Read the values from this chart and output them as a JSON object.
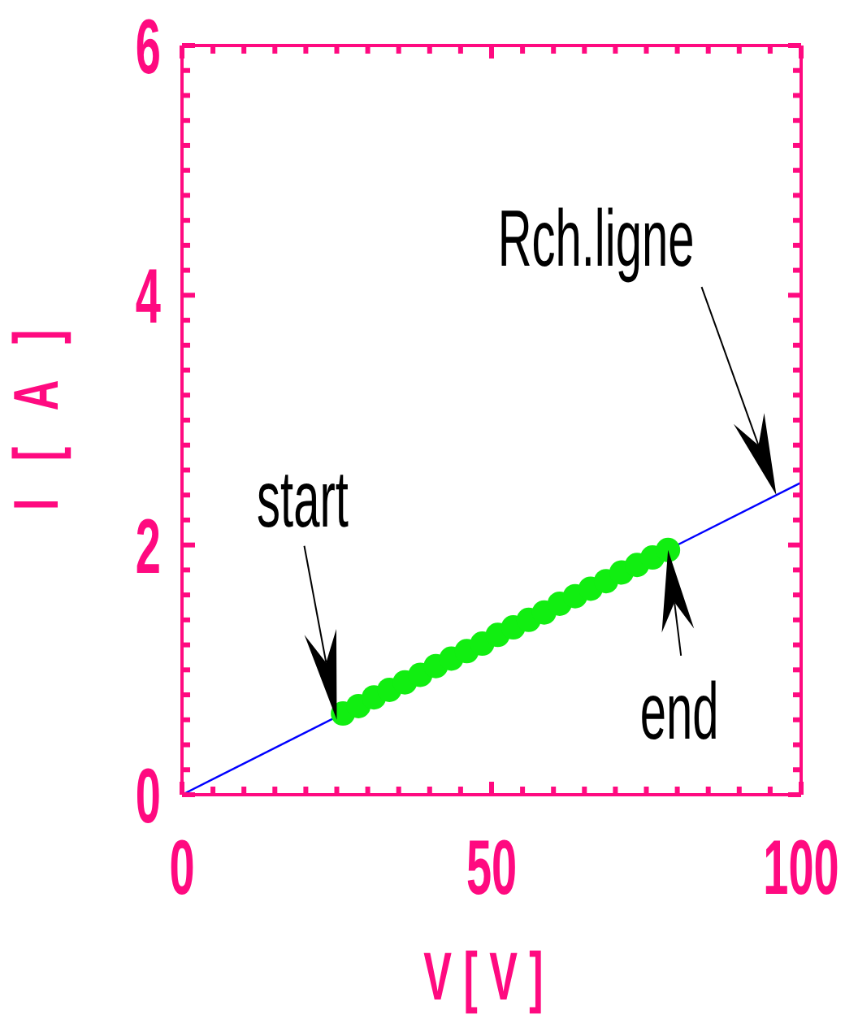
{
  "chart_data": {
    "type": "line",
    "xlabel": "V [ V ]",
    "ylabel": "I [ A ]",
    "xlim": [
      0,
      100
    ],
    "xticks": [
      0,
      {
        "value": 5,
        "label": null
      },
      {
        "value": 10,
        "label": null
      },
      {
        "value": 15,
        "label": null
      },
      {
        "value": 20,
        "label": null
      },
      {
        "value": 25,
        "label": null
      },
      {
        "value": 30,
        "label": null
      },
      {
        "value": 35,
        "label": null
      },
      {
        "value": 40,
        "label": null
      },
      {
        "value": 45,
        "label": null
      },
      50,
      {
        "value": 55,
        "label": null
      },
      {
        "value": 60,
        "label": null
      },
      {
        "value": 65,
        "label": null
      },
      {
        "value": 70,
        "label": null
      },
      {
        "value": 75,
        "label": null
      },
      {
        "value": 80,
        "label": null
      },
      {
        "value": 85,
        "label": null
      },
      {
        "value": 90,
        "label": null
      },
      {
        "value": 95,
        "label": null
      },
      100
    ],
    "ylim": [
      0,
      6
    ],
    "yticks": [
      0,
      {
        "value": 0.2,
        "label": null
      },
      {
        "value": 0.4,
        "label": null
      },
      {
        "value": 0.6,
        "label": null
      },
      {
        "value": 0.8,
        "label": null
      },
      {
        "value": 1,
        "label": null
      },
      {
        "value": 1.2,
        "label": null
      },
      {
        "value": 1.4,
        "label": null
      },
      {
        "value": 1.6,
        "label": null
      },
      {
        "value": 1.8,
        "label": null
      },
      2,
      {
        "value": 2.2,
        "label": null
      },
      {
        "value": 2.4,
        "label": null
      },
      {
        "value": 2.6,
        "label": null
      },
      {
        "value": 2.8,
        "label": null
      },
      {
        "value": 3,
        "label": null
      },
      {
        "value": 3.2,
        "label": null
      },
      {
        "value": 3.4,
        "label": null
      },
      {
        "value": 3.6,
        "label": null
      },
      {
        "value": 3.8,
        "label": null
      },
      4,
      {
        "value": 4.2,
        "label": null
      },
      {
        "value": 4.4,
        "label": null
      },
      {
        "value": 4.6,
        "label": null
      },
      {
        "value": 4.8,
        "label": null
      },
      {
        "value": 5,
        "label": null
      },
      {
        "value": 5.2,
        "label": null
      },
      {
        "value": 5.4,
        "label": null
      },
      {
        "value": 5.6,
        "label": null
      },
      {
        "value": 5.8,
        "label": null
      },
      6
    ],
    "series": [
      {
        "color": "#0000ff",
        "marker": "none",
        "x": [
          0,
          100
        ],
        "values": [
          0,
          2.5
        ]
      },
      {
        "type": "scatter",
        "color": "#11ee11",
        "marker": "circle",
        "x": [
          26,
          28.5,
          31,
          33.5,
          36,
          38.5,
          41,
          43.5,
          46,
          48.5,
          51,
          53.5,
          56,
          58.5,
          61,
          63.5,
          66,
          68.5,
          71,
          73.5,
          76,
          78.5
        ],
        "values": [
          0.65,
          0.71,
          0.78,
          0.84,
          0.9,
          0.96,
          1.03,
          1.09,
          1.15,
          1.21,
          1.28,
          1.34,
          1.4,
          1.46,
          1.53,
          1.59,
          1.65,
          1.71,
          1.78,
          1.84,
          1.9,
          1.96
        ]
      }
    ],
    "annotations": [
      {
        "text": "start",
        "x": 25,
        "y": 0.6
      },
      {
        "text": "end",
        "x": 78.5,
        "y": 1.96
      },
      {
        "text": "Rch.ligne",
        "x": 96,
        "y": 2.4
      }
    ]
  }
}
